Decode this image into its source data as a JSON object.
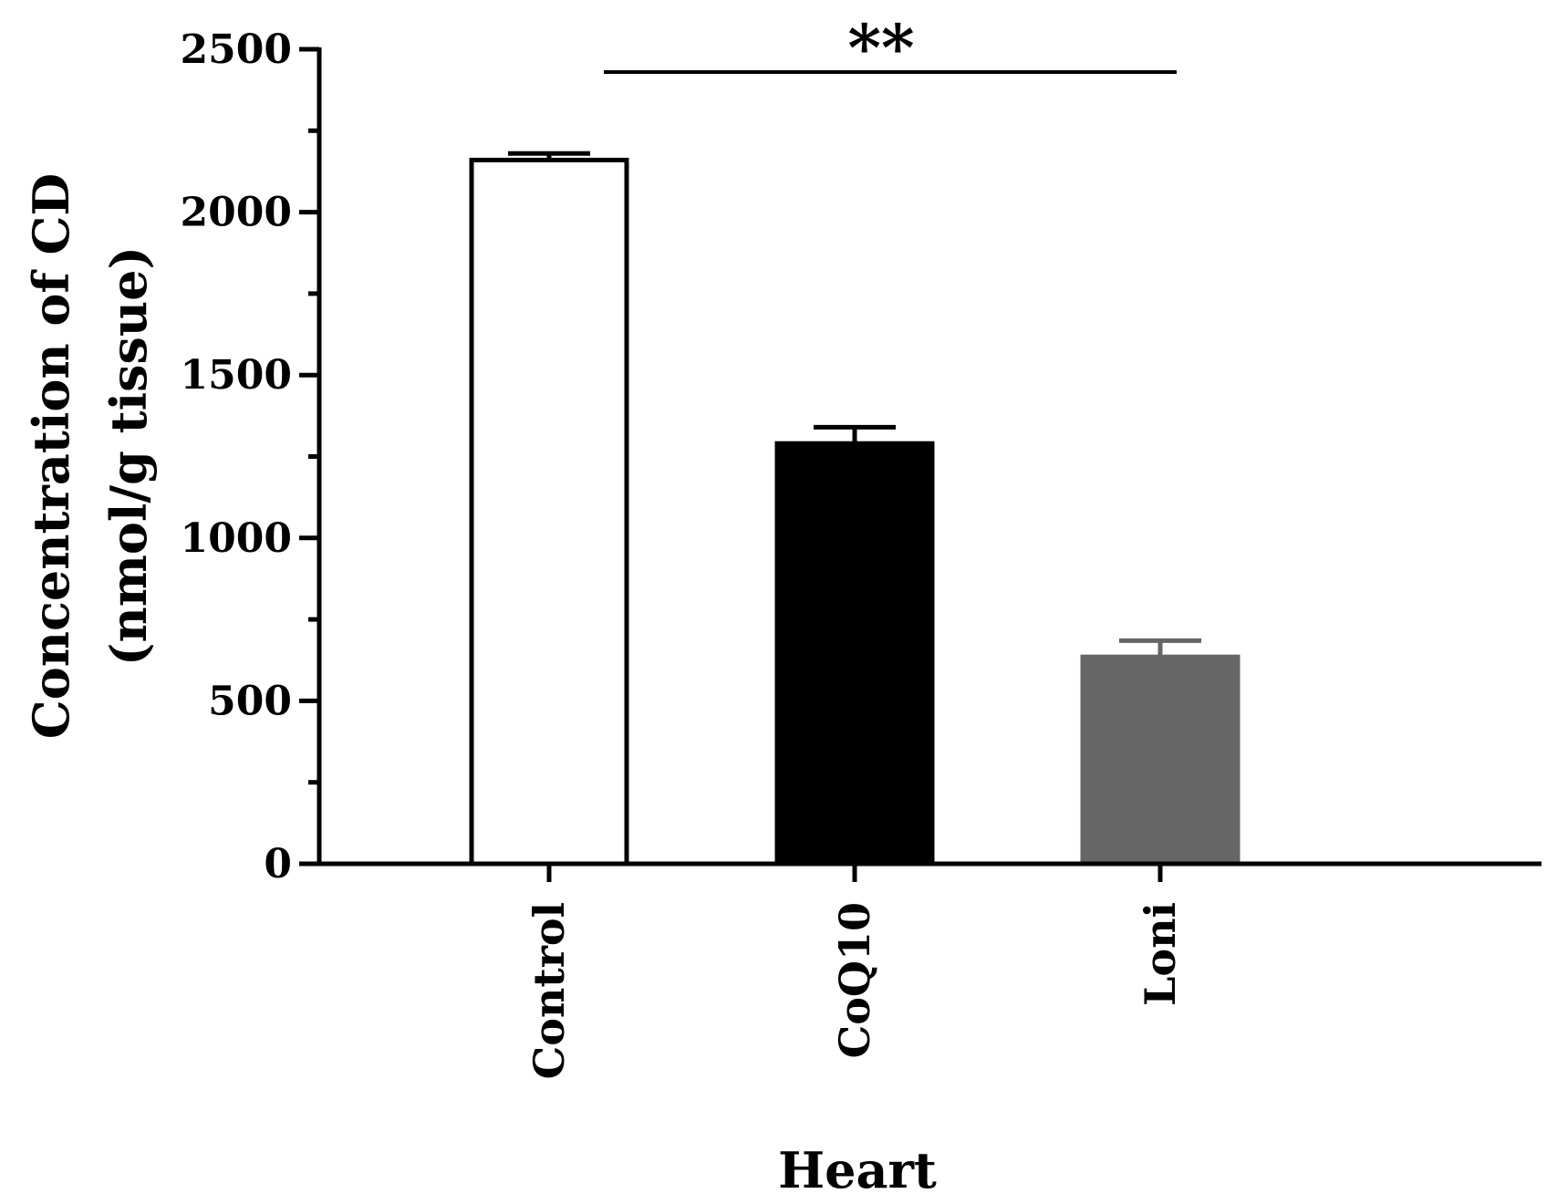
{
  "chart_data": {
    "type": "bar",
    "categories": [
      "Control",
      "CoQ10",
      "Loni"
    ],
    "values": [
      2160,
      1290,
      635
    ],
    "errors": [
      20,
      50,
      50
    ],
    "bar_colors": [
      "#ffffff",
      "#000000",
      "#666666"
    ],
    "bar_stroke_colors": [
      "#000000",
      "#000000",
      "#666666"
    ],
    "title": "",
    "xlabel": "Heart",
    "ylabel_line1": "Concentration of CD",
    "ylabel_line2": "(nmol/g tissue)",
    "ylim": [
      0,
      2500
    ],
    "yticks": [
      0,
      500,
      1000,
      1500,
      2000,
      2500
    ],
    "minor_tick_step": 250,
    "grid": false,
    "legend": "none",
    "significance": {
      "label": "**",
      "from_category": "Control",
      "to_category": "Loni"
    }
  }
}
